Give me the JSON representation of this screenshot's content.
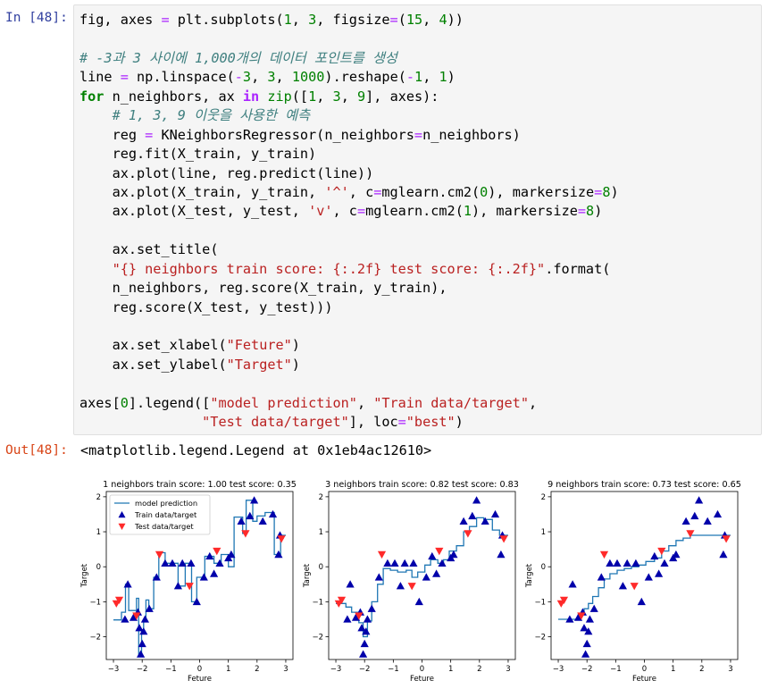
{
  "cell": {
    "in_prompt": "In [48]:",
    "out_prompt": "Out[48]:",
    "output_text": "<matplotlib.legend.Legend at 0x1eb4ac12610>",
    "code_lines": [
      [
        {
          "t": "fig, axes "
        },
        {
          "t": "=",
          "c": "eq"
        },
        {
          "t": " plt"
        },
        {
          "t": "."
        },
        {
          "t": "subplots("
        },
        {
          "t": "1",
          "c": "num"
        },
        {
          "t": ", "
        },
        {
          "t": "3",
          "c": "num"
        },
        {
          "t": ", figsize"
        },
        {
          "t": "=",
          "c": "eq"
        },
        {
          "t": "("
        },
        {
          "t": "15",
          "c": "num"
        },
        {
          "t": ", "
        },
        {
          "t": "4",
          "c": "num"
        },
        {
          "t": "))"
        }
      ],
      [],
      [
        {
          "t": "# -3과 3 사이에 1,000개의 데이터 포인트를 생성",
          "c": "cm"
        }
      ],
      [
        {
          "t": "line "
        },
        {
          "t": "=",
          "c": "eq"
        },
        {
          "t": " np"
        },
        {
          "t": "."
        },
        {
          "t": "linspace("
        },
        {
          "t": "-",
          "c": "eq"
        },
        {
          "t": "3",
          "c": "num"
        },
        {
          "t": ", "
        },
        {
          "t": "3",
          "c": "num"
        },
        {
          "t": ", "
        },
        {
          "t": "1000",
          "c": "num"
        },
        {
          "t": ")"
        },
        {
          "t": "."
        },
        {
          "t": "reshape("
        },
        {
          "t": "-",
          "c": "eq"
        },
        {
          "t": "1",
          "c": "num"
        },
        {
          "t": ", "
        },
        {
          "t": "1",
          "c": "num"
        },
        {
          "t": ")"
        }
      ],
      [
        {
          "t": "for",
          "c": "kw"
        },
        {
          "t": " n_neighbors, ax "
        },
        {
          "t": "in",
          "c": "op"
        },
        {
          "t": " "
        },
        {
          "t": "zip",
          "c": "bi"
        },
        {
          "t": "(["
        },
        {
          "t": "1",
          "c": "num"
        },
        {
          "t": ", "
        },
        {
          "t": "3",
          "c": "num"
        },
        {
          "t": ", "
        },
        {
          "t": "9",
          "c": "num"
        },
        {
          "t": "], axes):"
        }
      ],
      [
        {
          "t": "    "
        },
        {
          "t": "# 1, 3, 9 이웃을 사용한 예측",
          "c": "cm"
        }
      ],
      [
        {
          "t": "    reg "
        },
        {
          "t": "=",
          "c": "eq"
        },
        {
          "t": " KNeighborsRegressor(n_neighbors"
        },
        {
          "t": "=",
          "c": "eq"
        },
        {
          "t": "n_neighbors)"
        }
      ],
      [
        {
          "t": "    reg"
        },
        {
          "t": "."
        },
        {
          "t": "fit(X_train, y_train)"
        }
      ],
      [
        {
          "t": "    ax"
        },
        {
          "t": "."
        },
        {
          "t": "plot(line, reg"
        },
        {
          "t": "."
        },
        {
          "t": "predict(line))"
        }
      ],
      [
        {
          "t": "    ax"
        },
        {
          "t": "."
        },
        {
          "t": "plot(X_train, y_train, "
        },
        {
          "t": "'^'",
          "c": "str"
        },
        {
          "t": ", c"
        },
        {
          "t": "=",
          "c": "eq"
        },
        {
          "t": "mglearn"
        },
        {
          "t": "."
        },
        {
          "t": "cm2("
        },
        {
          "t": "0",
          "c": "num"
        },
        {
          "t": "), markersize"
        },
        {
          "t": "=",
          "c": "eq"
        },
        {
          "t": "8",
          "c": "num"
        },
        {
          "t": ")"
        }
      ],
      [
        {
          "t": "    ax"
        },
        {
          "t": "."
        },
        {
          "t": "plot(X_test, y_test, "
        },
        {
          "t": "'v'",
          "c": "str"
        },
        {
          "t": ", c"
        },
        {
          "t": "=",
          "c": "eq"
        },
        {
          "t": "mglearn"
        },
        {
          "t": "."
        },
        {
          "t": "cm2("
        },
        {
          "t": "1",
          "c": "num"
        },
        {
          "t": "), markersize"
        },
        {
          "t": "=",
          "c": "eq"
        },
        {
          "t": "8",
          "c": "num"
        },
        {
          "t": ")"
        }
      ],
      [],
      [
        {
          "t": "    ax"
        },
        {
          "t": "."
        },
        {
          "t": "set_title("
        }
      ],
      [
        {
          "t": "    "
        },
        {
          "t": "\"{} neighbors train score: {:.2f} test score: {:.2f}\"",
          "c": "str"
        },
        {
          "t": "."
        },
        {
          "t": "format("
        }
      ],
      [
        {
          "t": "    n_neighbors, reg"
        },
        {
          "t": "."
        },
        {
          "t": "score(X_train, y_train),"
        }
      ],
      [
        {
          "t": "    reg"
        },
        {
          "t": "."
        },
        {
          "t": "score(X_test, y_test)))"
        }
      ],
      [],
      [
        {
          "t": "    ax"
        },
        {
          "t": "."
        },
        {
          "t": "set_xlabel("
        },
        {
          "t": "\"Feture\"",
          "c": "str"
        },
        {
          "t": ")"
        }
      ],
      [
        {
          "t": "    ax"
        },
        {
          "t": "."
        },
        {
          "t": "set_ylabel("
        },
        {
          "t": "\"Target\"",
          "c": "str"
        },
        {
          "t": ")"
        }
      ],
      [],
      [
        {
          "t": "axes["
        },
        {
          "t": "0",
          "c": "num"
        },
        {
          "t": "]"
        },
        {
          "t": "."
        },
        {
          "t": "legend(["
        },
        {
          "t": "\"model prediction\"",
          "c": "str"
        },
        {
          "t": ", "
        },
        {
          "t": "\"Train data/target\"",
          "c": "str"
        },
        {
          "t": ","
        }
      ],
      [
        {
          "t": "               "
        },
        {
          "t": "\"Test data/target\"",
          "c": "str"
        },
        {
          "t": "], loc"
        },
        {
          "t": "=",
          "c": "eq"
        },
        {
          "t": "\"best\"",
          "c": "str"
        },
        {
          "t": ")"
        }
      ]
    ]
  },
  "colors": {
    "line": "#1f77b4",
    "train": "#0000aa",
    "test": "#ff2a2a"
  },
  "chart_data": [
    {
      "type": "line",
      "title": "1 neighbors train score: 1.00 test score: 0.35",
      "xlabel": "Feture",
      "ylabel": "Target",
      "xlim": [
        -3.25,
        3.25
      ],
      "ylim": [
        -2.65,
        2.15
      ],
      "xticks": [
        -3,
        -2,
        -1,
        0,
        1,
        2,
        3
      ],
      "yticks": [
        -2,
        -1,
        0,
        1,
        2
      ],
      "legend": {
        "placement": "upper left",
        "entries": [
          "model prediction",
          "Train data/target",
          "Test data/target"
        ]
      },
      "series": [
        {
          "name": "model prediction",
          "kind": "line",
          "x": [
            -3.0,
            -2.72,
            -2.72,
            -2.58,
            -2.58,
            -2.47,
            -2.47,
            -2.2,
            -2.2,
            -2.12,
            -2.12,
            -2.02,
            -2.02,
            -1.95,
            -1.95,
            -1.87,
            -1.87,
            -1.77,
            -1.77,
            -1.6,
            -1.6,
            -1.42,
            -1.42,
            -1.2,
            -1.2,
            -0.95,
            -0.95,
            -0.75,
            -0.75,
            -0.5,
            -0.5,
            -0.28,
            -0.28,
            -0.1,
            -0.1,
            0.18,
            0.18,
            0.5,
            0.5,
            0.75,
            0.75,
            1.0,
            1.0,
            1.2,
            1.2,
            1.5,
            1.5,
            1.62,
            1.62,
            1.85,
            1.85,
            2.0,
            2.0,
            2.28,
            2.28,
            2.6,
            2.6,
            2.82,
            2.82,
            3.0
          ],
          "y": [
            -1.52,
            -1.52,
            -1.3,
            -1.3,
            -0.5,
            -0.5,
            -1.25,
            -1.25,
            -0.9,
            -0.9,
            -2.5,
            -2.5,
            -1.8,
            -1.8,
            -1.5,
            -1.5,
            -0.95,
            -0.95,
            -1.2,
            -1.2,
            -0.3,
            -0.3,
            0.4,
            0.4,
            0.1,
            0.1,
            0.1,
            0.1,
            -0.55,
            -0.55,
            0.1,
            0.1,
            -1.0,
            -1.0,
            -0.3,
            -0.3,
            0.3,
            0.3,
            0.1,
            0.1,
            0.35,
            0.35,
            0.0,
            0.0,
            1.42,
            1.42,
            0.95,
            0.95,
            1.9,
            1.9,
            1.3,
            1.3,
            1.45,
            1.45,
            1.55,
            1.55,
            0.35,
            0.35,
            0.9,
            0.9
          ]
        },
        {
          "name": "Train data/target",
          "kind": "train",
          "x": [
            -2.6,
            -2.5,
            -2.3,
            -2.15,
            -2.1,
            -2.05,
            -2.0,
            -1.95,
            -1.9,
            -1.75,
            -1.5,
            -1.2,
            -0.95,
            -0.75,
            -0.6,
            -0.3,
            -0.1,
            0.15,
            0.35,
            0.5,
            0.7,
            1.0,
            1.1,
            1.45,
            1.75,
            1.9,
            2.2,
            2.55,
            2.75,
            2.8
          ],
          "y": [
            -1.5,
            -0.5,
            -1.45,
            -1.3,
            -1.75,
            -2.5,
            -2.2,
            -1.85,
            -1.5,
            -1.2,
            -0.3,
            0.1,
            0.1,
            -0.55,
            0.1,
            0.1,
            -1.0,
            -0.3,
            0.3,
            -0.2,
            0.1,
            0.25,
            0.35,
            1.3,
            1.45,
            1.9,
            1.3,
            1.5,
            0.35,
            0.9
          ]
        },
        {
          "name": "Test data/target",
          "kind": "test",
          "x": [
            -2.9,
            -2.8,
            -2.2,
            -1.4,
            -0.35,
            0.6,
            1.6,
            2.85
          ],
          "y": [
            -1.05,
            -0.95,
            -1.4,
            0.35,
            -0.55,
            0.45,
            0.95,
            0.8
          ]
        }
      ]
    },
    {
      "type": "line",
      "title": "3 neighbors train score: 0.82 test score: 0.83",
      "xlabel": "Feture",
      "ylabel": "Target",
      "xlim": [
        -3.25,
        3.25
      ],
      "ylim": [
        -2.65,
        2.15
      ],
      "xticks": [
        -3,
        -2,
        -1,
        0,
        1,
        2,
        3
      ],
      "yticks": [
        -2,
        -1,
        0,
        1,
        2
      ],
      "series": [
        {
          "name": "model prediction",
          "kind": "line",
          "x": [
            -3.0,
            -2.65,
            -2.65,
            -2.45,
            -2.45,
            -2.2,
            -2.2,
            -2.05,
            -2.05,
            -1.9,
            -1.9,
            -1.75,
            -1.75,
            -1.55,
            -1.55,
            -1.35,
            -1.35,
            -1.1,
            -1.1,
            -0.85,
            -0.85,
            -0.55,
            -0.55,
            -0.35,
            -0.35,
            -0.15,
            -0.15,
            0.1,
            0.1,
            0.3,
            0.3,
            0.55,
            0.55,
            0.75,
            0.75,
            0.95,
            0.95,
            1.2,
            1.2,
            1.45,
            1.45,
            1.65,
            1.65,
            1.9,
            1.9,
            2.15,
            2.15,
            2.45,
            2.45,
            2.7,
            2.7,
            3.0
          ],
          "y": [
            -1.05,
            -1.05,
            -1.15,
            -1.15,
            -1.3,
            -1.3,
            -1.6,
            -1.6,
            -2.0,
            -2.0,
            -1.55,
            -1.55,
            -1.0,
            -1.0,
            -0.5,
            -0.5,
            -0.05,
            -0.05,
            -0.1,
            -0.1,
            -0.15,
            -0.15,
            -0.1,
            -0.1,
            -0.3,
            -0.3,
            -0.15,
            -0.15,
            0.05,
            0.05,
            0.2,
            0.2,
            0.1,
            0.1,
            0.2,
            0.2,
            0.45,
            0.45,
            0.6,
            0.6,
            1.0,
            1.0,
            1.15,
            1.15,
            1.4,
            1.4,
            1.35,
            1.35,
            1.05,
            1.05,
            0.9,
            0.9
          ]
        },
        {
          "name": "Train data/target",
          "kind": "train",
          "x": [
            -2.6,
            -2.5,
            -2.3,
            -2.15,
            -2.1,
            -2.05,
            -2.0,
            -1.95,
            -1.9,
            -1.75,
            -1.5,
            -1.2,
            -0.95,
            -0.75,
            -0.6,
            -0.3,
            -0.1,
            0.15,
            0.35,
            0.5,
            0.7,
            1.0,
            1.1,
            1.45,
            1.75,
            1.9,
            2.2,
            2.55,
            2.75,
            2.8
          ],
          "y": [
            -1.5,
            -0.5,
            -1.45,
            -1.3,
            -1.75,
            -2.5,
            -2.2,
            -1.85,
            -1.5,
            -1.2,
            -0.3,
            0.1,
            0.1,
            -0.55,
            0.1,
            0.1,
            -1.0,
            -0.3,
            0.3,
            -0.2,
            0.1,
            0.25,
            0.35,
            1.3,
            1.45,
            1.9,
            1.3,
            1.5,
            0.35,
            0.9
          ]
        },
        {
          "name": "Test data/target",
          "kind": "test",
          "x": [
            -2.9,
            -2.8,
            -2.2,
            -1.4,
            -0.35,
            0.6,
            1.6,
            2.85
          ],
          "y": [
            -1.05,
            -0.95,
            -1.4,
            0.35,
            -0.55,
            0.45,
            0.95,
            0.8
          ]
        }
      ]
    },
    {
      "type": "line",
      "title": "9 neighbors train score: 0.73 test score: 0.65",
      "xlabel": "Feture",
      "ylabel": "Target",
      "xlim": [
        -3.25,
        3.25
      ],
      "ylim": [
        -2.65,
        2.15
      ],
      "xticks": [
        -3,
        -2,
        -1,
        0,
        1,
        2,
        3
      ],
      "yticks": [
        -2,
        -1,
        0,
        1,
        2
      ],
      "series": [
        {
          "name": "model prediction",
          "kind": "line",
          "x": [
            -3.0,
            -2.3,
            -2.3,
            -2.1,
            -2.1,
            -1.95,
            -1.95,
            -1.8,
            -1.8,
            -1.6,
            -1.6,
            -1.4,
            -1.4,
            -1.2,
            -1.2,
            -0.95,
            -0.95,
            -0.7,
            -0.7,
            -0.45,
            -0.45,
            -0.2,
            -0.2,
            0.05,
            0.05,
            0.35,
            0.35,
            0.6,
            0.6,
            0.85,
            0.85,
            1.1,
            1.1,
            1.35,
            1.35,
            1.6,
            1.6,
            3.0
          ],
          "y": [
            -1.5,
            -1.5,
            -1.35,
            -1.35,
            -1.2,
            -1.2,
            -1.05,
            -1.05,
            -0.85,
            -0.85,
            -0.6,
            -0.6,
            -0.35,
            -0.35,
            -0.2,
            -0.2,
            -0.1,
            -0.1,
            -0.05,
            -0.05,
            0.0,
            0.0,
            0.05,
            0.05,
            0.15,
            0.15,
            0.25,
            0.25,
            0.45,
            0.45,
            0.6,
            0.6,
            0.75,
            0.75,
            0.82,
            0.82,
            0.9,
            0.9
          ]
        },
        {
          "name": "Train data/target",
          "kind": "train",
          "x": [
            -2.6,
            -2.5,
            -2.3,
            -2.15,
            -2.1,
            -2.05,
            -2.0,
            -1.95,
            -1.9,
            -1.75,
            -1.5,
            -1.2,
            -0.95,
            -0.75,
            -0.6,
            -0.3,
            -0.1,
            0.15,
            0.35,
            0.5,
            0.7,
            1.0,
            1.1,
            1.45,
            1.75,
            1.9,
            2.2,
            2.55,
            2.75,
            2.8
          ],
          "y": [
            -1.5,
            -0.5,
            -1.45,
            -1.3,
            -1.75,
            -2.5,
            -2.2,
            -1.85,
            -1.5,
            -1.2,
            -0.3,
            0.1,
            0.1,
            -0.55,
            0.1,
            0.1,
            -1.0,
            -0.3,
            0.3,
            -0.2,
            0.1,
            0.25,
            0.35,
            1.3,
            1.45,
            1.9,
            1.3,
            1.5,
            0.35,
            0.9
          ]
        },
        {
          "name": "Test data/target",
          "kind": "test",
          "x": [
            -2.9,
            -2.8,
            -2.2,
            -1.4,
            -0.35,
            0.6,
            1.6,
            2.85
          ],
          "y": [
            -1.05,
            -0.95,
            -1.4,
            0.35,
            -0.55,
            0.45,
            0.95,
            0.8
          ]
        }
      ]
    }
  ]
}
